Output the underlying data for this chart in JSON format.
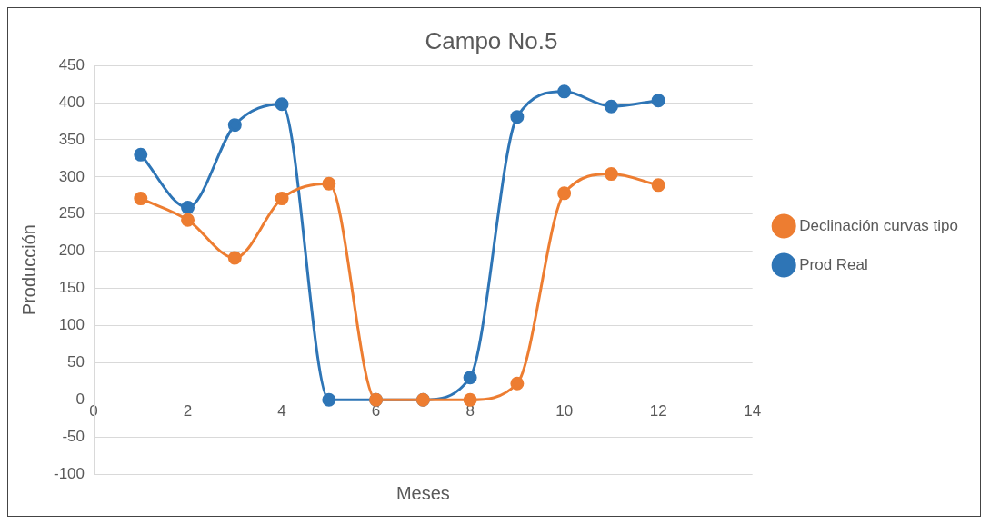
{
  "chart_data": {
    "type": "line",
    "title": "Campo No.5",
    "xlabel": "Meses",
    "ylabel": "Producción",
    "xlim": [
      0,
      14
    ],
    "xticks": [
      0,
      2,
      4,
      6,
      8,
      10,
      12,
      14
    ],
    "ylim": [
      -100,
      450
    ],
    "yticks": [
      -100,
      -50,
      0,
      50,
      100,
      150,
      200,
      250,
      300,
      350,
      400,
      450
    ],
    "grid": "y",
    "legend": "right",
    "marker": "circle",
    "line_style": "solid",
    "series": [
      {
        "name": "Declinación curvas tipo",
        "color": "#ed7d31",
        "x": [
          1,
          2,
          3,
          4,
          5,
          6,
          7,
          8,
          9,
          10,
          11,
          12
        ],
        "values": [
          271,
          242,
          191,
          271,
          291,
          0,
          0,
          0,
          22,
          278,
          304,
          289
        ]
      },
      {
        "name": "Prod Real",
        "color": "#2e75b6",
        "x": [
          1,
          2,
          3,
          4,
          5,
          6,
          7,
          8,
          9,
          10,
          11,
          12
        ],
        "values": [
          330,
          259,
          370,
          398,
          0,
          0,
          0,
          30,
          381,
          415,
          395,
          403
        ]
      }
    ]
  }
}
